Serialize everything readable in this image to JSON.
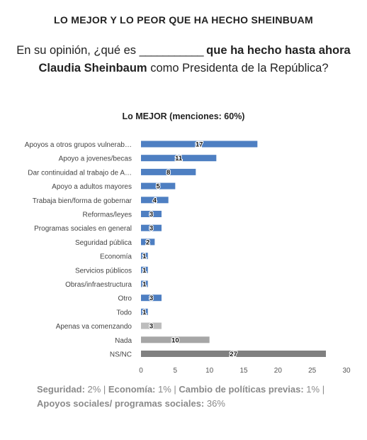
{
  "header": {
    "title": "LO MEJOR Y LO PEOR QUE HA HECHO SHEINBUAM",
    "question_part1": "En su opinión, ¿qué es",
    "question_blank": "___________",
    "question_bold1": "que ha hecho hasta ahora",
    "question_bold2": "Claudia Sheinbaum",
    "question_part2": "como Presidenta de la República?"
  },
  "chart_data": {
    "type": "bar",
    "orientation": "horizontal",
    "title": "Lo MEJOR (menciones: 60%)",
    "categories": [
      "Apoyos a otros grupos vulnerab…",
      "Apoyo a jovenes/becas",
      "Dar continuidad al trabajo de A…",
      "Apoyo a adultos mayores",
      "Trabaja bien/forma de gobernar",
      "Reformas/leyes",
      "Programas sociales en general",
      "Seguridad pública",
      "Economía",
      "Servicios públicos",
      "Obras/infraestructura",
      "Otro",
      "Todo",
      "Apenas va comenzando",
      "Nada",
      "NS/NC"
    ],
    "values": [
      17,
      11,
      8,
      5,
      4,
      3,
      3,
      2,
      1,
      1,
      1,
      3,
      1,
      3,
      10,
      27
    ],
    "colors": [
      "#4e7fc2",
      "#4e7fc2",
      "#4e7fc2",
      "#4e7fc2",
      "#4e7fc2",
      "#4e7fc2",
      "#4e7fc2",
      "#4e7fc2",
      "#4e7fc2",
      "#4e7fc2",
      "#4e7fc2",
      "#4e7fc2",
      "#4e7fc2",
      "#bdbdbd",
      "#a6a6a6",
      "#808080"
    ],
    "xlim": [
      0,
      30
    ],
    "xticks": [
      0,
      5,
      10,
      15,
      20,
      25,
      30
    ],
    "xlabel": "",
    "ylabel": "",
    "grid": false,
    "data_labels": true
  },
  "footer": {
    "line1": [
      {
        "label": "Seguridad:",
        "value": "2%"
      },
      {
        "label": "Economía:",
        "value": "1%"
      },
      {
        "label": "Cambio de políticas previas:",
        "value": "1%"
      }
    ],
    "line2": [
      {
        "label": "Apoyos sociales/ programas sociales:",
        "value": "36%"
      }
    ],
    "separator": "|"
  }
}
